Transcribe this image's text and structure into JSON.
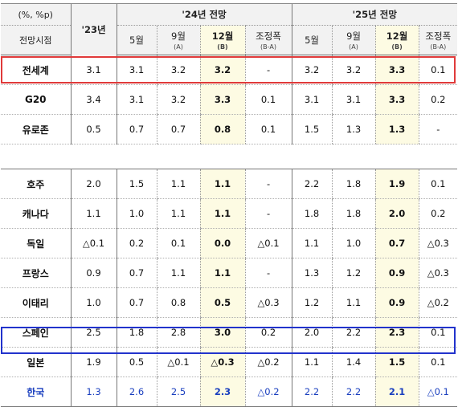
{
  "header": {
    "unit": "(%, %p)",
    "viewpoint": "전망시점",
    "year23": "'23년",
    "group24": "'24년 전망",
    "group25": "'25년 전망",
    "cols": [
      {
        "label": "5월",
        "sub": ""
      },
      {
        "label": "9월",
        "sub": "(A)"
      },
      {
        "label": "12월",
        "sub": "(B)"
      },
      {
        "label": "조정폭",
        "sub": "(B-A)"
      }
    ]
  },
  "rows": [
    {
      "name": "전세계",
      "v23": "3.1",
      "y24": [
        "3.1",
        "3.2",
        "3.2",
        "-"
      ],
      "y25": [
        "3.2",
        "3.2",
        "3.3",
        "0.1"
      ]
    },
    {
      "name": "G20",
      "v23": "3.4",
      "y24": [
        "3.1",
        "3.2",
        "3.3",
        "0.1"
      ],
      "y25": [
        "3.1",
        "3.1",
        "3.3",
        "0.2"
      ]
    },
    {
      "name": "유로존",
      "v23": "0.5",
      "y24": [
        "0.7",
        "0.7",
        "0.8",
        "0.1"
      ],
      "y25": [
        "1.5",
        "1.3",
        "1.3",
        "-"
      ]
    },
    {
      "name": "호주",
      "v23": "2.0",
      "y24": [
        "1.5",
        "1.1",
        "1.1",
        "-"
      ],
      "y25": [
        "2.2",
        "1.8",
        "1.9",
        "0.1"
      ]
    },
    {
      "name": "캐나다",
      "v23": "1.1",
      "y24": [
        "1.0",
        "1.1",
        "1.1",
        "-"
      ],
      "y25": [
        "1.8",
        "1.8",
        "2.0",
        "0.2"
      ]
    },
    {
      "name": "독일",
      "v23": "△0.1",
      "y24": [
        "0.2",
        "0.1",
        "0.0",
        "△0.1"
      ],
      "y25": [
        "1.1",
        "1.0",
        "0.7",
        "△0.3"
      ]
    },
    {
      "name": "프랑스",
      "v23": "0.9",
      "y24": [
        "0.7",
        "1.1",
        "1.1",
        "-"
      ],
      "y25": [
        "1.3",
        "1.2",
        "0.9",
        "△0.3"
      ]
    },
    {
      "name": "이태리",
      "v23": "1.0",
      "y24": [
        "0.7",
        "0.8",
        "0.5",
        "△0.3"
      ],
      "y25": [
        "1.2",
        "1.1",
        "0.9",
        "△0.2"
      ]
    },
    {
      "name": "스페인",
      "v23": "2.5",
      "y24": [
        "1.8",
        "2.8",
        "3.0",
        "0.2"
      ],
      "y25": [
        "2.0",
        "2.2",
        "2.3",
        "0.1"
      ]
    },
    {
      "name": "일본",
      "v23": "1.9",
      "y24": [
        "0.5",
        "△0.1",
        "△0.3",
        "△0.2"
      ],
      "y25": [
        "1.1",
        "1.4",
        "1.5",
        "0.1"
      ]
    },
    {
      "name": "한국",
      "v23": "1.3",
      "y24": [
        "2.6",
        "2.5",
        "2.3",
        "△0.2"
      ],
      "y25": [
        "2.2",
        "2.2",
        "2.1",
        "△0.1"
      ]
    }
  ],
  "colors": {
    "highlight_column": "#fdfbe3",
    "world_box": "#e03a3a",
    "korea_box": "#2233cc",
    "korea_text": "#1a3fbf"
  }
}
